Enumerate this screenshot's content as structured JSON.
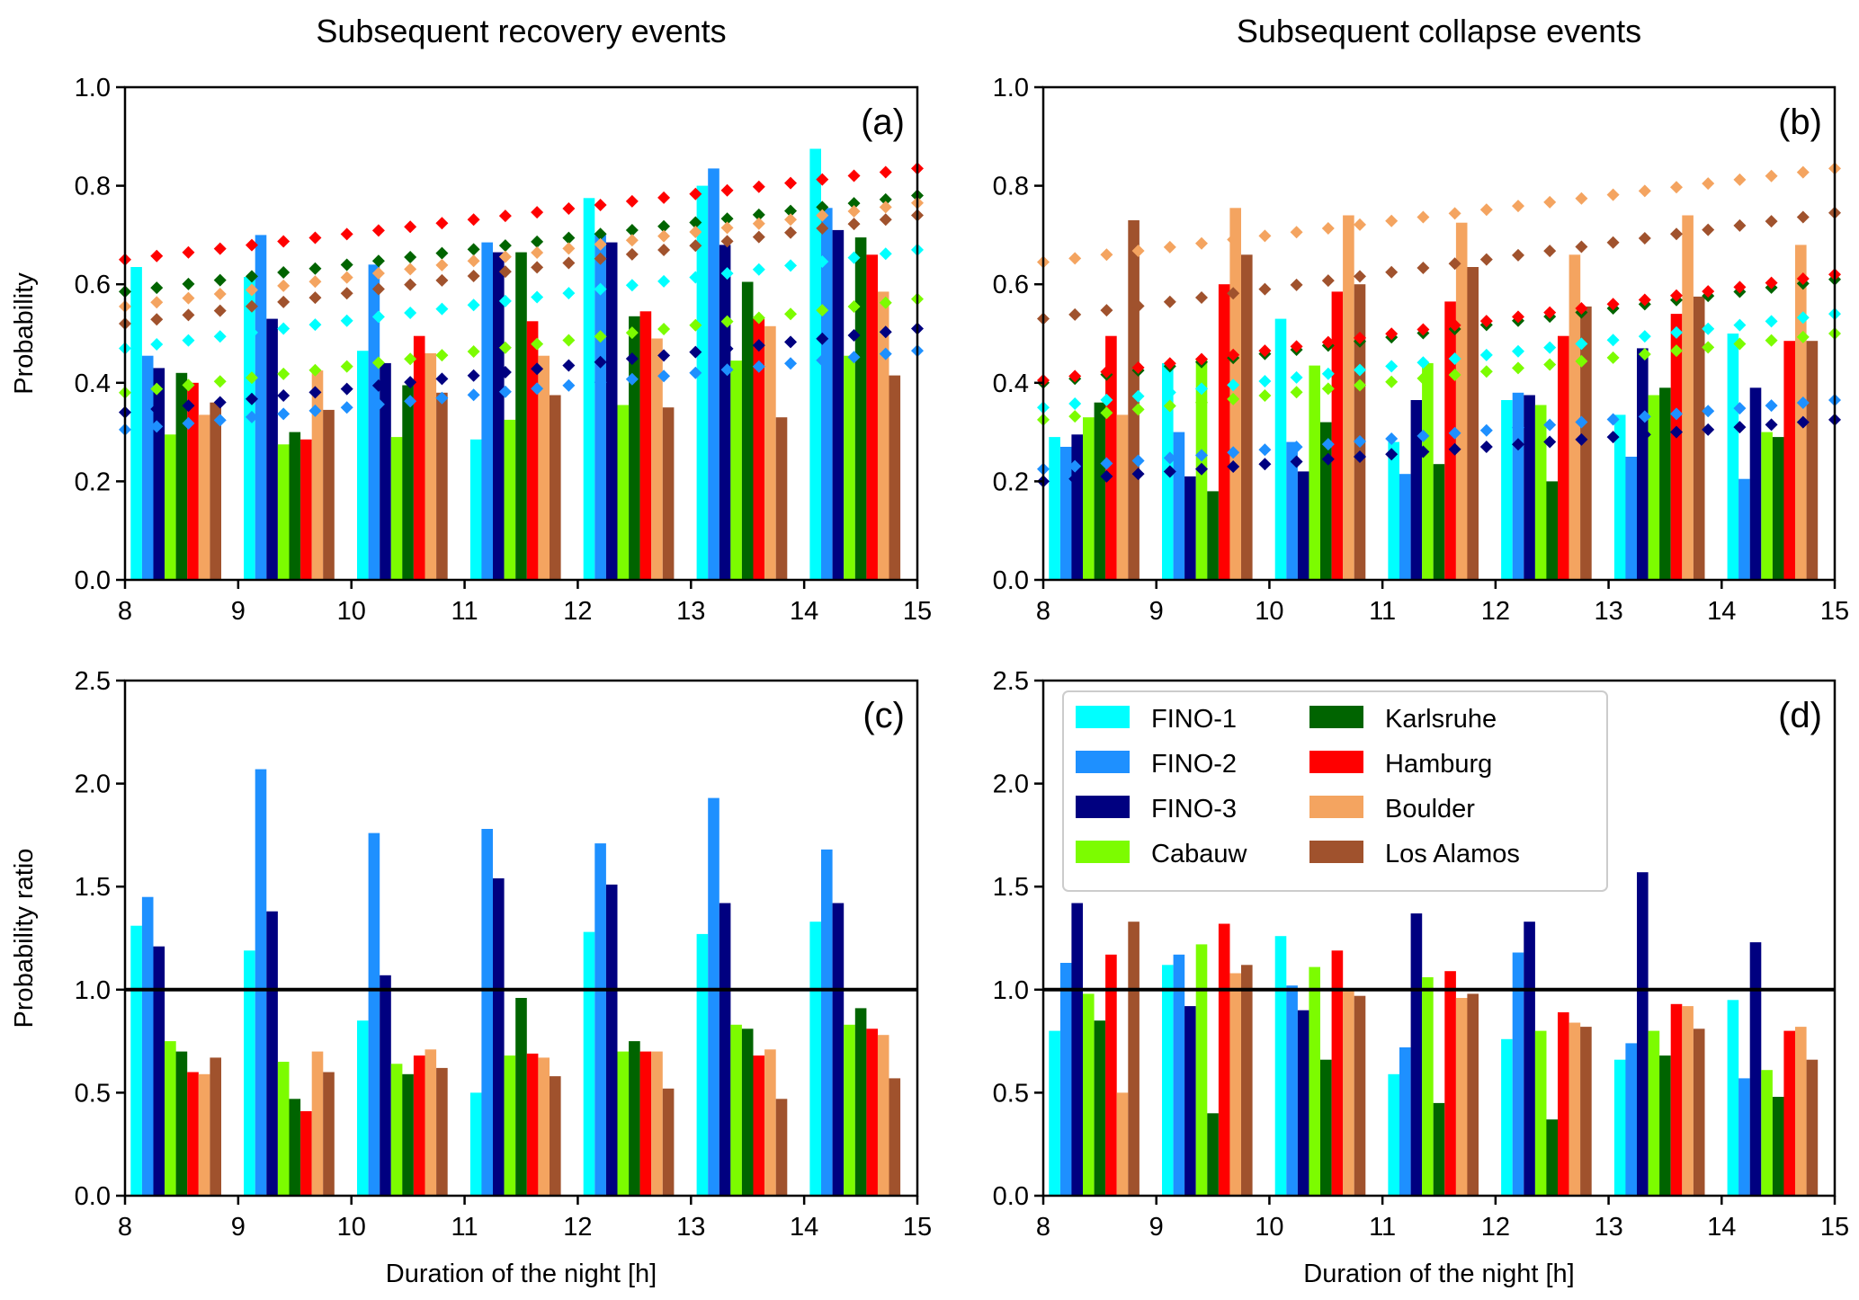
{
  "chart_data": [
    {
      "id": "a",
      "type": "bar",
      "panel_label": "(a)",
      "title": "Subsequent recovery events",
      "xlabel": "",
      "ylabel": "Probability",
      "xlim": [
        8,
        15
      ],
      "ylim": [
        0,
        1.0
      ],
      "xticks": [
        "8",
        "9",
        "10",
        "11",
        "12",
        "13",
        "14",
        "15"
      ],
      "yticks": [
        "0.0",
        "0.2",
        "0.4",
        "0.6",
        "0.8",
        "1.0"
      ],
      "ytick_values": [
        0,
        0.2,
        0.4,
        0.6,
        0.8,
        1.0
      ],
      "categories": [
        8,
        9,
        10,
        11,
        12,
        13,
        14
      ],
      "series": [
        {
          "name": "FINO-1",
          "values": [
            0.635,
            0.615,
            0.465,
            0.285,
            0.775,
            0.8,
            0.875
          ]
        },
        {
          "name": "FINO-2",
          "values": [
            0.455,
            0.7,
            0.64,
            0.685,
            0.7,
            0.835,
            0.755
          ]
        },
        {
          "name": "FINO-3",
          "values": [
            0.43,
            0.53,
            0.44,
            0.665,
            0.685,
            0.68,
            0.71
          ]
        },
        {
          "name": "Cabauw",
          "values": [
            0.295,
            0.275,
            0.29,
            0.325,
            0.355,
            0.445,
            0.455
          ]
        },
        {
          "name": "Karlsruhe",
          "values": [
            0.42,
            0.3,
            0.395,
            0.665,
            0.535,
            0.605,
            0.695
          ]
        },
        {
          "name": "Hamburg",
          "values": [
            0.4,
            0.285,
            0.495,
            0.525,
            0.545,
            0.53,
            0.66
          ]
        },
        {
          "name": "Boulder",
          "values": [
            0.335,
            0.425,
            0.46,
            0.455,
            0.49,
            0.515,
            0.585
          ]
        },
        {
          "name": "Los Alamos",
          "values": [
            0.36,
            0.345,
            0.38,
            0.375,
            0.35,
            0.33,
            0.415
          ]
        }
      ],
      "trend_lines": [
        {
          "name": "FINO-1",
          "start": 0.47,
          "end": 0.67
        },
        {
          "name": "FINO-2",
          "start": 0.305,
          "end": 0.465
        },
        {
          "name": "FINO-3",
          "start": 0.34,
          "end": 0.51
        },
        {
          "name": "Cabauw",
          "start": 0.38,
          "end": 0.57
        },
        {
          "name": "Karlsruhe",
          "start": 0.585,
          "end": 0.78
        },
        {
          "name": "Hamburg",
          "start": 0.65,
          "end": 0.835
        },
        {
          "name": "Boulder",
          "start": 0.555,
          "end": 0.765
        },
        {
          "name": "Los Alamos",
          "start": 0.52,
          "end": 0.74
        }
      ],
      "trend_points": 26,
      "reference_line": null
    },
    {
      "id": "b",
      "type": "bar",
      "panel_label": "(b)",
      "title": "Subsequent collapse events",
      "xlabel": "",
      "ylabel": "",
      "xlim": [
        8,
        15
      ],
      "ylim": [
        0,
        1.0
      ],
      "xticks": [
        "8",
        "9",
        "10",
        "11",
        "12",
        "13",
        "14",
        "15"
      ],
      "yticks": [
        "0.0",
        "0.2",
        "0.4",
        "0.6",
        "0.8",
        "1.0"
      ],
      "ytick_values": [
        0,
        0.2,
        0.4,
        0.6,
        0.8,
        1.0
      ],
      "categories": [
        8,
        9,
        10,
        11,
        12,
        13,
        14
      ],
      "series": [
        {
          "name": "FINO-1",
          "values": [
            0.29,
            0.44,
            0.53,
            0.28,
            0.365,
            0.335,
            0.5
          ]
        },
        {
          "name": "FINO-2",
          "values": [
            0.27,
            0.3,
            0.28,
            0.215,
            0.38,
            0.25,
            0.205
          ]
        },
        {
          "name": "FINO-3",
          "values": [
            0.295,
            0.21,
            0.22,
            0.365,
            0.375,
            0.47,
            0.39
          ]
        },
        {
          "name": "Cabauw",
          "values": [
            0.33,
            0.45,
            0.435,
            0.44,
            0.355,
            0.375,
            0.3
          ]
        },
        {
          "name": "Karlsruhe",
          "values": [
            0.36,
            0.18,
            0.32,
            0.235,
            0.2,
            0.39,
            0.29
          ]
        },
        {
          "name": "Hamburg",
          "values": [
            0.495,
            0.6,
            0.585,
            0.565,
            0.495,
            0.54,
            0.485
          ]
        },
        {
          "name": "Boulder",
          "values": [
            0.335,
            0.755,
            0.74,
            0.725,
            0.66,
            0.74,
            0.68
          ]
        },
        {
          "name": "Los Alamos",
          "values": [
            0.73,
            0.66,
            0.6,
            0.635,
            0.555,
            0.575,
            0.485
          ]
        }
      ],
      "trend_lines": [
        {
          "name": "FINO-1",
          "start": 0.35,
          "end": 0.54
        },
        {
          "name": "FINO-2",
          "start": 0.225,
          "end": 0.365
        },
        {
          "name": "FINO-3",
          "start": 0.2,
          "end": 0.325
        },
        {
          "name": "Cabauw",
          "start": 0.325,
          "end": 0.5
        },
        {
          "name": "Karlsruhe",
          "start": 0.4,
          "end": 0.61
        },
        {
          "name": "Hamburg",
          "start": 0.405,
          "end": 0.62
        },
        {
          "name": "Boulder",
          "start": 0.645,
          "end": 0.835
        },
        {
          "name": "Los Alamos",
          "start": 0.53,
          "end": 0.745
        }
      ],
      "trend_points": 26,
      "reference_line": null
    },
    {
      "id": "c",
      "type": "bar",
      "panel_label": "(c)",
      "title": "",
      "xlabel": "Duration of the night [h]",
      "ylabel": "Probability ratio",
      "xlim": [
        8,
        15
      ],
      "ylim": [
        0,
        2.5
      ],
      "xticks": [
        "8",
        "9",
        "10",
        "11",
        "12",
        "13",
        "14",
        "15"
      ],
      "yticks": [
        "0.0",
        "0.5",
        "1.0",
        "1.5",
        "2.0",
        "2.5"
      ],
      "ytick_values": [
        0,
        0.5,
        1.0,
        1.5,
        2.0,
        2.5
      ],
      "categories": [
        8,
        9,
        10,
        11,
        12,
        13,
        14
      ],
      "series": [
        {
          "name": "FINO-1",
          "values": [
            1.31,
            1.19,
            0.85,
            0.5,
            1.28,
            1.27,
            1.33
          ]
        },
        {
          "name": "FINO-2",
          "values": [
            1.45,
            2.07,
            1.76,
            1.78,
            1.71,
            1.93,
            1.68
          ]
        },
        {
          "name": "FINO-3",
          "values": [
            1.21,
            1.38,
            1.07,
            1.54,
            1.51,
            1.42,
            1.42
          ]
        },
        {
          "name": "Cabauw",
          "values": [
            0.75,
            0.65,
            0.64,
            0.68,
            0.7,
            0.83,
            0.83
          ]
        },
        {
          "name": "Karlsruhe",
          "values": [
            0.7,
            0.47,
            0.59,
            0.96,
            0.75,
            0.81,
            0.91
          ]
        },
        {
          "name": "Hamburg",
          "values": [
            0.6,
            0.41,
            0.68,
            0.69,
            0.7,
            0.68,
            0.81
          ]
        },
        {
          "name": "Boulder",
          "values": [
            0.59,
            0.7,
            0.71,
            0.67,
            0.7,
            0.71,
            0.78
          ]
        },
        {
          "name": "Los Alamos",
          "values": [
            0.67,
            0.6,
            0.62,
            0.58,
            0.52,
            0.47,
            0.57
          ]
        }
      ],
      "trend_lines": [],
      "reference_line": 1.0
    },
    {
      "id": "d",
      "type": "bar",
      "panel_label": "(d)",
      "title": "",
      "xlabel": "Duration of the night [h]",
      "ylabel": "",
      "xlim": [
        8,
        15
      ],
      "ylim": [
        0,
        2.5
      ],
      "xticks": [
        "8",
        "9",
        "10",
        "11",
        "12",
        "13",
        "14",
        "15"
      ],
      "yticks": [
        "0.0",
        "0.5",
        "1.0",
        "1.5",
        "2.0",
        "2.5"
      ],
      "ytick_values": [
        0,
        0.5,
        1.0,
        1.5,
        2.0,
        2.5
      ],
      "categories": [
        8,
        9,
        10,
        11,
        12,
        13,
        14
      ],
      "series": [
        {
          "name": "FINO-1",
          "values": [
            0.8,
            1.12,
            1.26,
            0.59,
            0.76,
            0.66,
            0.95
          ]
        },
        {
          "name": "FINO-2",
          "values": [
            1.13,
            1.17,
            1.02,
            0.72,
            1.18,
            0.74,
            0.57
          ]
        },
        {
          "name": "FINO-3",
          "values": [
            1.42,
            0.92,
            0.9,
            1.37,
            1.33,
            1.57,
            1.23
          ]
        },
        {
          "name": "Cabauw",
          "values": [
            0.98,
            1.22,
            1.11,
            1.06,
            0.8,
            0.8,
            0.61
          ]
        },
        {
          "name": "Karlsruhe",
          "values": [
            0.85,
            0.4,
            0.66,
            0.45,
            0.37,
            0.68,
            0.48
          ]
        },
        {
          "name": "Hamburg",
          "values": [
            1.17,
            1.32,
            1.19,
            1.09,
            0.89,
            0.93,
            0.8
          ]
        },
        {
          "name": "Boulder",
          "values": [
            0.5,
            1.08,
            1.0,
            0.96,
            0.84,
            0.92,
            0.82
          ]
        },
        {
          "name": "Los Alamos",
          "values": [
            1.33,
            1.12,
            0.97,
            0.98,
            0.82,
            0.81,
            0.66
          ]
        }
      ],
      "trend_lines": [],
      "reference_line": 1.0,
      "legend": {
        "placement": "top-left",
        "columns": 2,
        "entries": [
          "FINO-1",
          "FINO-2",
          "FINO-3",
          "Cabauw",
          "Karlsruhe",
          "Hamburg",
          "Boulder",
          "Los Alamos"
        ]
      }
    }
  ],
  "colors": {
    "FINO-1": "#00ffff",
    "FINO-2": "#1e90ff",
    "FINO-3": "#000080",
    "Cabauw": "#7cfc00",
    "Karlsruhe": "#006400",
    "Hamburg": "#ff0000",
    "Boulder": "#f4a460",
    "Los Alamos": "#a0522d"
  }
}
